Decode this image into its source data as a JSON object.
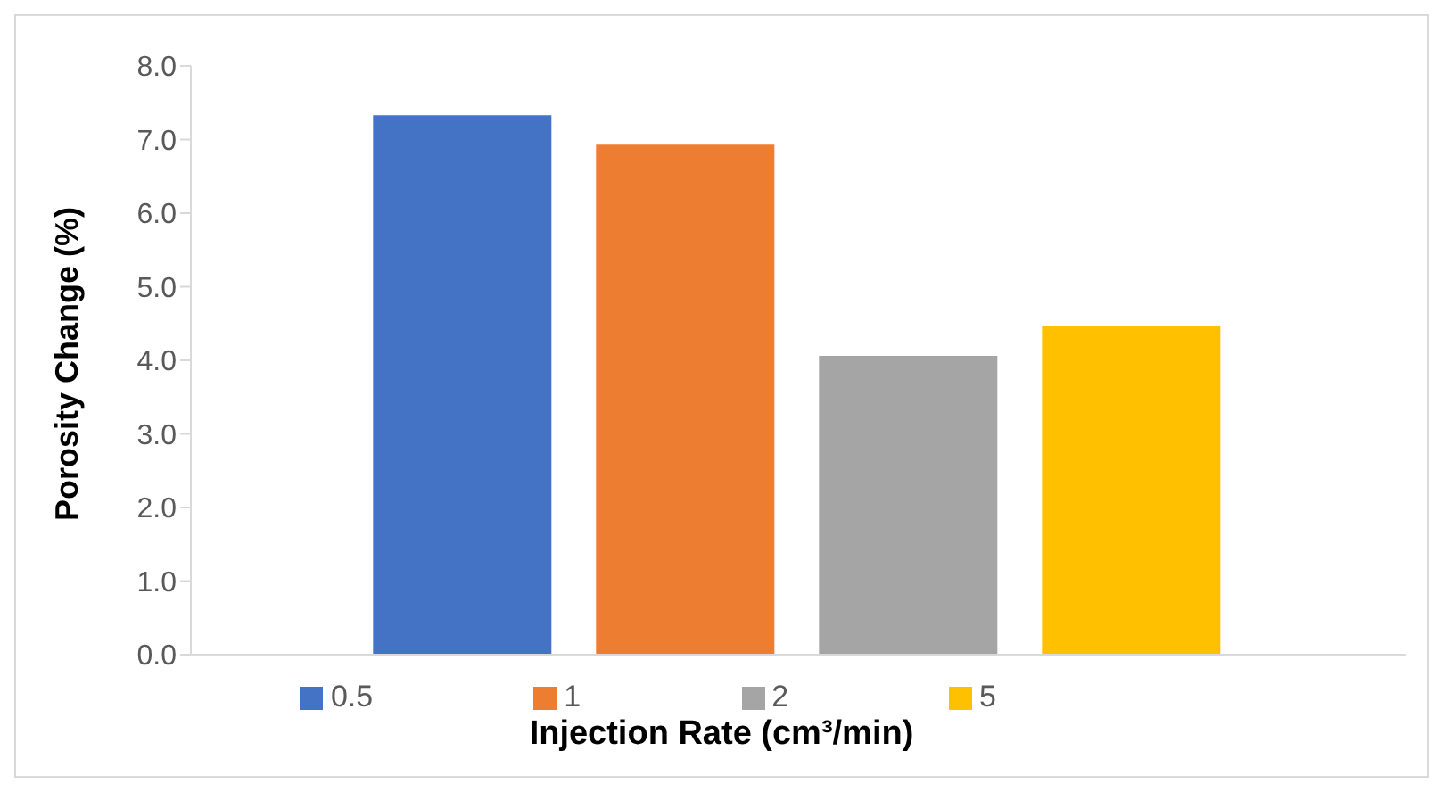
{
  "chart_data": {
    "type": "bar",
    "xlabel": "Injection Rate (cm³/min)",
    "ylabel": "Porosity Change (%)",
    "categories": [
      null
    ],
    "series": [
      {
        "name": "0.5",
        "color": "#4472c4",
        "values": [
          7.33
        ]
      },
      {
        "name": "1",
        "color": "#ed7d31",
        "values": [
          6.93
        ]
      },
      {
        "name": "2",
        "color": "#a5a5a5",
        "values": [
          4.06
        ]
      },
      {
        "name": "5",
        "color": "#ffc000",
        "values": [
          4.47
        ]
      }
    ],
    "ylim": [
      0,
      8
    ],
    "yticks": [
      {
        "value": 0,
        "label": "0.0"
      },
      {
        "value": 1,
        "label": "1.0"
      },
      {
        "value": 2,
        "label": "2.0"
      },
      {
        "value": 3,
        "label": "3.0"
      },
      {
        "value": 4,
        "label": "4.0"
      },
      {
        "value": 5,
        "label": "5.0"
      },
      {
        "value": 6,
        "label": "6.0"
      },
      {
        "value": 7,
        "label": "7.0"
      },
      {
        "value": 8,
        "label": "8.0"
      }
    ],
    "grid": false,
    "legend": "bottom"
  }
}
